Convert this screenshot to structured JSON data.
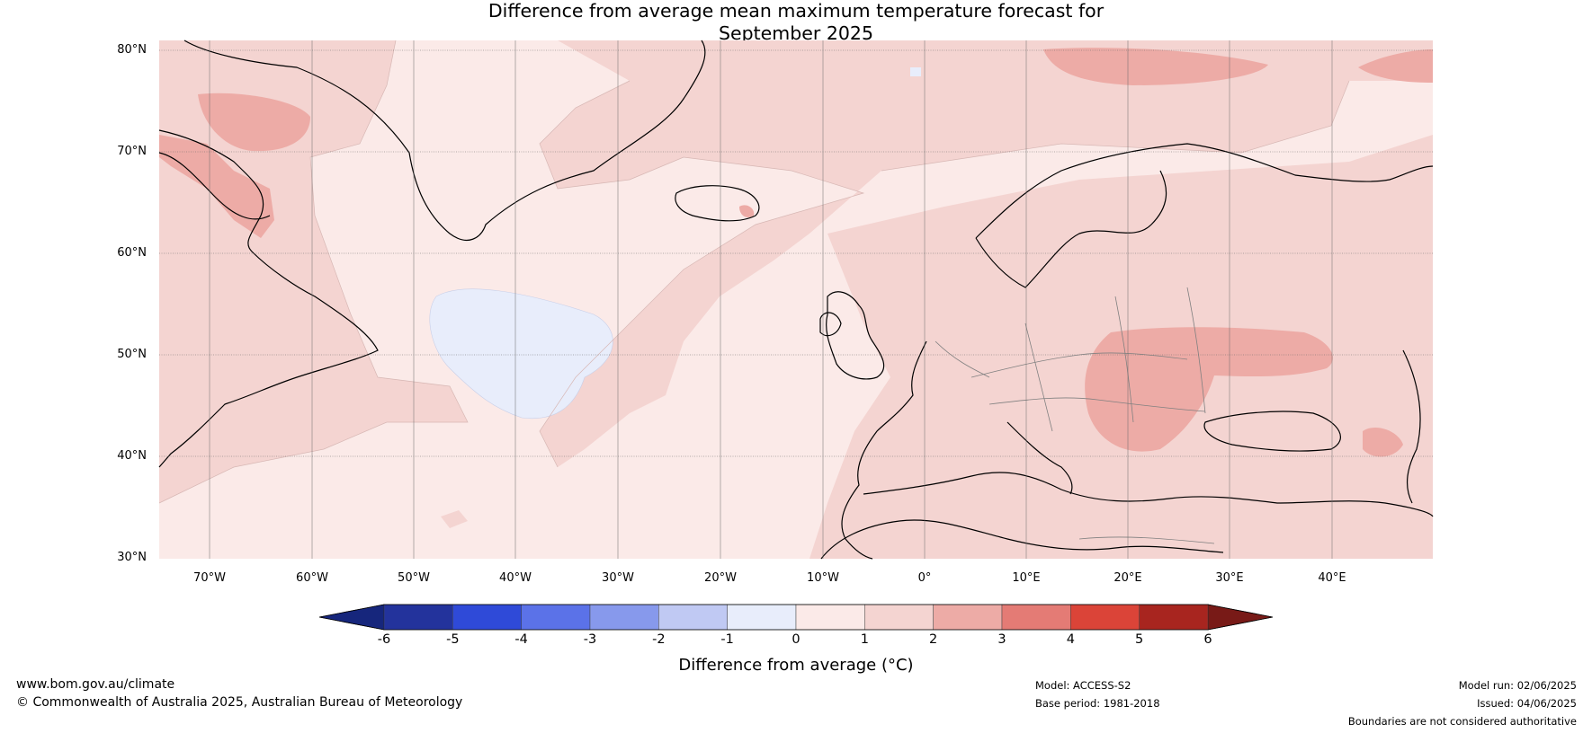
{
  "title": {
    "line1": "Difference from average mean maximum temperature forecast for",
    "line2": "September 2025"
  },
  "map": {
    "extent": {
      "lon": [
        -75,
        50
      ],
      "lat": [
        30,
        80
      ]
    },
    "lat_labels": [
      "80°N",
      "70°N",
      "60°N",
      "50°N",
      "40°N",
      "30°N"
    ],
    "lon_labels": [
      "70°W",
      "60°W",
      "50°W",
      "40°W",
      "30°W",
      "20°W",
      "10°W",
      "0°",
      "10°E",
      "20°E",
      "30°E",
      "40°E"
    ],
    "dominant_anomaly": "0 to 1",
    "colors": {
      "land_sea_base": "#fbeae8",
      "warm_1_2": "#f4d4d1",
      "warm_2_3": "#edaba6",
      "cool_minus1_0": "#e8edfb",
      "coast": "#000000",
      "border": "#808080"
    }
  },
  "colorbar": {
    "title": "Difference from average (°C)",
    "ticks": [
      "-6",
      "-5",
      "-4",
      "-3",
      "-2",
      "-1",
      "0",
      "1",
      "2",
      "3",
      "4",
      "5",
      "6"
    ],
    "colors": [
      "#23339c",
      "#2f4ad8",
      "#5b72e8",
      "#8799ec",
      "#c0c9f3",
      "#e8edfb",
      "#fbeae8",
      "#f4d4d1",
      "#edaba6",
      "#e47b75",
      "#db4438",
      "#a8251f"
    ],
    "under_color": "#16267c",
    "over_color": "#781a17"
  },
  "footer": {
    "url": "www.bom.gov.au/climate",
    "copyright": "© Commonwealth of Australia 2025, Australian Bureau of Meteorology",
    "model": "Model: ACCESS-S2",
    "base_period": "Base period: 1981-2018",
    "model_run": "Model run: 02/06/2025",
    "issued": "Issued: 04/06/2025",
    "disclaimer": "Boundaries are not considered authoritative"
  }
}
